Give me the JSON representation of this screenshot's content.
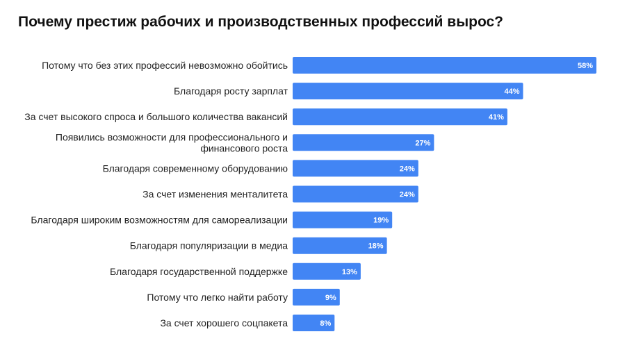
{
  "chart_data": {
    "type": "bar",
    "orientation": "horizontal",
    "title": "Почему престиж рабочих и производственных профессий вырос?",
    "categories": [
      [
        "Потому что без этих профессий невозможно обойтись"
      ],
      [
        "Благодаря росту зарплат"
      ],
      [
        "За счет высокого спроса и большого количества вакансий"
      ],
      [
        "Появились возможности для профессионального и",
        "финансового роста"
      ],
      [
        "Благодаря современному оборудованию"
      ],
      [
        "За счет изменения менталитета"
      ],
      [
        "Благодаря широким возможностям для самореализации"
      ],
      [
        "Благодаря популяризации в медиа"
      ],
      [
        "Благодаря государственной поддержке"
      ],
      [
        "Потому что легко найти работу"
      ],
      [
        "За счет хорошего соцпакета"
      ]
    ],
    "values": [
      58,
      44,
      41,
      27,
      24,
      24,
      19,
      18,
      13,
      9,
      8
    ],
    "value_labels": [
      "58%",
      "44%",
      "41%",
      "27%",
      "24%",
      "24%",
      "19%",
      "18%",
      "13%",
      "9%",
      "8%"
    ],
    "unit": "%",
    "xlim": [
      0,
      58
    ],
    "bar_color": "#4285f4",
    "grid": false,
    "legend": "none"
  }
}
